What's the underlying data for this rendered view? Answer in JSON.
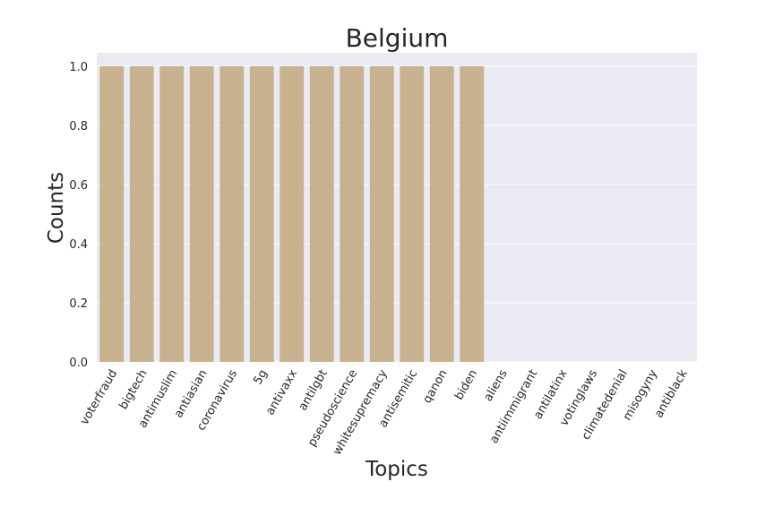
{
  "chart_data": {
    "type": "bar",
    "title": "Belgium",
    "xlabel": "Topics",
    "ylabel": "Counts",
    "categories": [
      "voterfraud",
      "bigtech",
      "antimuslim",
      "antiasian",
      "coronavirus",
      "5g",
      "antivaxx",
      "antilgbt",
      "pseudoscience",
      "whitesupremacy",
      "antisemitic",
      "qanon",
      "biden",
      "aliens",
      "antiimmigrant",
      "antilatinx",
      "votinglaws",
      "climatedenial",
      "misogyny",
      "antiblack"
    ],
    "values": [
      1.0,
      1.0,
      1.0,
      1.0,
      1.0,
      1.0,
      1.0,
      1.0,
      1.0,
      1.0,
      1.0,
      1.0,
      1.0,
      0,
      0,
      0,
      0,
      0,
      0,
      0
    ],
    "ylim": [
      0,
      1.0
    ],
    "yticks": [
      "0.0",
      "0.2",
      "0.4",
      "0.6",
      "0.8",
      "1.0"
    ],
    "grid": true,
    "colors": {
      "bar": "#c8b18e",
      "background": "#eaeaf2",
      "grid": "#ffffff"
    }
  }
}
